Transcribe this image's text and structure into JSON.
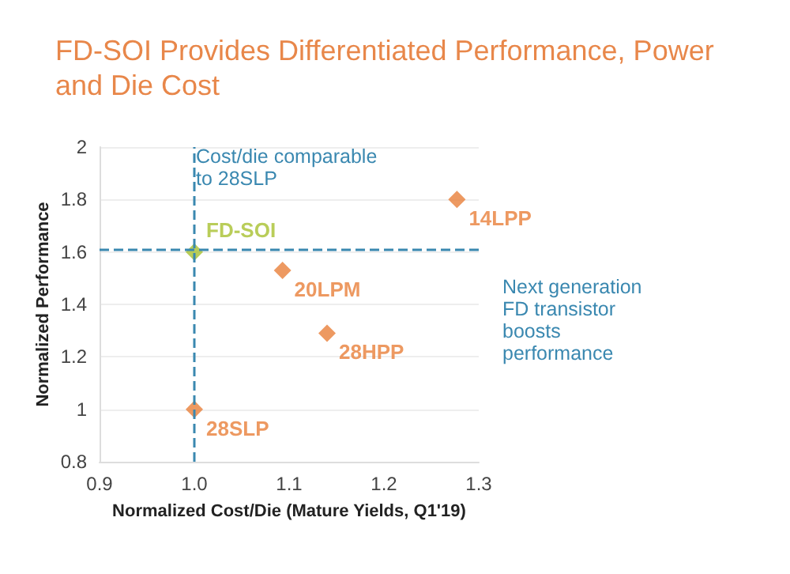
{
  "chart_data": {
    "type": "scatter",
    "title": "FD-SOI Provides Differentiated Performance, Power and Die Cost",
    "xlabel": "Normalized Cost/Die (Mature Yields, Q1'19)",
    "ylabel": "Normalized Performance",
    "xlim": [
      0.9,
      1.3
    ],
    "xticks": [
      {
        "value": 0.9,
        "label": "0.9"
      },
      {
        "value": 1.0,
        "label": "1.0"
      },
      {
        "value": 1.1,
        "label": "1.1"
      },
      {
        "value": 1.2,
        "label": "1.2"
      },
      {
        "value": 1.3,
        "label": "1.3"
      }
    ],
    "ylim": [
      0.8,
      2
    ],
    "yticks": [
      0.8,
      1,
      1.2,
      1.4,
      1.6,
      1.8,
      2
    ],
    "grid": "y",
    "marker": "diamond",
    "series": [
      {
        "name": "14LPP",
        "color": "#e8803a",
        "x": [
          1.277
        ],
        "values": [
          1.8
        ]
      },
      {
        "name": "FD-SOI",
        "color": "#a8c030",
        "x": [
          1.0
        ],
        "values": [
          1.6
        ]
      },
      {
        "name": "20LPM",
        "color": "#e8803a",
        "x": [
          1.093
        ],
        "values": [
          1.53
        ]
      },
      {
        "name": "28HPP",
        "color": "#e8803a",
        "x": [
          1.14
        ],
        "values": [
          1.29
        ]
      },
      {
        "name": "28SLP",
        "color": "#e8803a",
        "x": [
          1.0
        ],
        "values": [
          1.0
        ]
      }
    ],
    "ref_lines": [
      {
        "axis": "x",
        "value": 1.0,
        "label": "Cost/die comparable to 28SLP",
        "color": "#3a88b0",
        "line_style": "dashed"
      },
      {
        "axis": "y",
        "value": 1.61,
        "label": "Next generation FD transistor boosts performance",
        "color": "#3a88b0",
        "line_style": "dashed"
      }
    ]
  }
}
